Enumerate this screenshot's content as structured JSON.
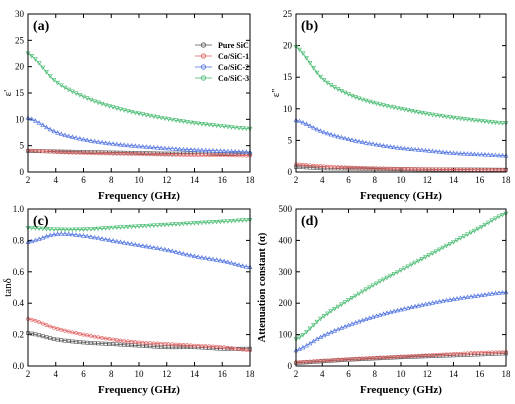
{
  "legend": {
    "entries": [
      {
        "label": "Pure SiC",
        "color": "#555555"
      },
      {
        "label": "Co/SiC-1",
        "color": "#e05a5a"
      },
      {
        "label": "Co/SiC-2",
        "color": "#4a6ee0"
      },
      {
        "label": "Co/SiC-3",
        "color": "#3fb86a"
      }
    ]
  },
  "chart_data": [
    {
      "type": "line",
      "panel_label": "(a)",
      "xlabel": "Frequency (GHz)",
      "ylabel": "ε'",
      "xlim": [
        2,
        18
      ],
      "ylim": [
        0,
        30
      ],
      "xticks": [
        "2",
        "4",
        "6",
        "8",
        "10",
        "12",
        "14",
        "16",
        "18"
      ],
      "yticks": [
        "0",
        "5",
        "10",
        "15",
        "20",
        "25",
        "30"
      ],
      "x": [
        2,
        4,
        6,
        8,
        10,
        12,
        14,
        16,
        18
      ],
      "series": [
        {
          "name": "Pure SiC",
          "values": [
            4.0,
            3.9,
            3.8,
            3.7,
            3.6,
            3.5,
            3.5,
            3.4,
            3.4
          ]
        },
        {
          "name": "Co/SiC-1",
          "values": [
            4.1,
            3.8,
            3.6,
            3.5,
            3.4,
            3.3,
            3.2,
            3.2,
            3.1
          ]
        },
        {
          "name": "Co/SiC-2",
          "values": [
            10.3,
            7.6,
            6.2,
            5.4,
            4.9,
            4.5,
            4.2,
            4.0,
            3.8
          ]
        },
        {
          "name": "Co/SiC-3",
          "values": [
            22.5,
            17.2,
            14.3,
            12.4,
            11.1,
            10.1,
            9.3,
            8.7,
            8.2
          ]
        }
      ]
    },
    {
      "type": "line",
      "panel_label": "(b)",
      "xlabel": "Frequency (GHz)",
      "ylabel": "ε''",
      "xlim": [
        2,
        18
      ],
      "ylim": [
        0,
        25
      ],
      "xticks": [
        "2",
        "4",
        "6",
        "8",
        "10",
        "12",
        "14",
        "16",
        "18"
      ],
      "yticks": [
        "0",
        "5",
        "10",
        "15",
        "20",
        "25"
      ],
      "x": [
        2,
        4,
        6,
        8,
        10,
        12,
        14,
        16,
        18
      ],
      "series": [
        {
          "name": "Pure SiC",
          "values": [
            0.8,
            0.6,
            0.55,
            0.5,
            0.45,
            0.4,
            0.4,
            0.38,
            0.35
          ]
        },
        {
          "name": "Co/SiC-1",
          "values": [
            1.2,
            0.9,
            0.7,
            0.6,
            0.5,
            0.45,
            0.4,
            0.35,
            0.3
          ]
        },
        {
          "name": "Co/SiC-2",
          "values": [
            8.2,
            6.4,
            5.2,
            4.4,
            3.8,
            3.4,
            3.0,
            2.8,
            2.6
          ]
        },
        {
          "name": "Co/SiC-3",
          "values": [
            19.8,
            14.8,
            12.3,
            10.9,
            10.0,
            9.2,
            8.6,
            8.1,
            7.7
          ]
        }
      ]
    },
    {
      "type": "line",
      "panel_label": "(c)",
      "xlabel": "Frequency (GHz)",
      "ylabel": "tanδ",
      "xlim": [
        2,
        18
      ],
      "ylim": [
        0,
        1.0
      ],
      "xticks": [
        "2",
        "4",
        "6",
        "8",
        "10",
        "12",
        "14",
        "16",
        "18"
      ],
      "yticks": [
        "0.0",
        "0.2",
        "0.4",
        "0.6",
        "0.8",
        "1.0"
      ],
      "x": [
        2,
        4,
        6,
        8,
        10,
        12,
        14,
        16,
        18
      ],
      "series": [
        {
          "name": "Pure SiC",
          "values": [
            0.21,
            0.17,
            0.15,
            0.14,
            0.13,
            0.12,
            0.12,
            0.11,
            0.11
          ]
        },
        {
          "name": "Co/SiC-1",
          "values": [
            0.3,
            0.24,
            0.2,
            0.17,
            0.15,
            0.14,
            0.13,
            0.12,
            0.1
          ]
        },
        {
          "name": "Co/SiC-2",
          "values": [
            0.79,
            0.84,
            0.83,
            0.8,
            0.77,
            0.74,
            0.7,
            0.67,
            0.63
          ]
        },
        {
          "name": "Co/SiC-3",
          "values": [
            0.88,
            0.87,
            0.87,
            0.88,
            0.89,
            0.9,
            0.91,
            0.92,
            0.93
          ]
        }
      ]
    },
    {
      "type": "line",
      "panel_label": "(d)",
      "xlabel": "Frequency (GHz)",
      "ylabel": "Attenuation constant (α)",
      "xlim": [
        2,
        18
      ],
      "ylim": [
        0,
        500
      ],
      "xticks": [
        "2",
        "4",
        "6",
        "8",
        "10",
        "12",
        "14",
        "16",
        "18"
      ],
      "yticks": [
        "0",
        "100",
        "200",
        "300",
        "400",
        "500"
      ],
      "x": [
        2,
        4,
        6,
        8,
        10,
        12,
        14,
        16,
        18
      ],
      "series": [
        {
          "name": "Pure SiC",
          "values": [
            10,
            15,
            20,
            24,
            28,
            31,
            34,
            37,
            40
          ]
        },
        {
          "name": "Co/SiC-1",
          "values": [
            12,
            17,
            22,
            26,
            30,
            34,
            38,
            42,
            44
          ]
        },
        {
          "name": "Co/SiC-2",
          "values": [
            50,
            95,
            130,
            158,
            180,
            198,
            213,
            225,
            235
          ]
        },
        {
          "name": "Co/SiC-3",
          "values": [
            85,
            155,
            210,
            260,
            305,
            350,
            395,
            440,
            485
          ]
        }
      ]
    }
  ]
}
